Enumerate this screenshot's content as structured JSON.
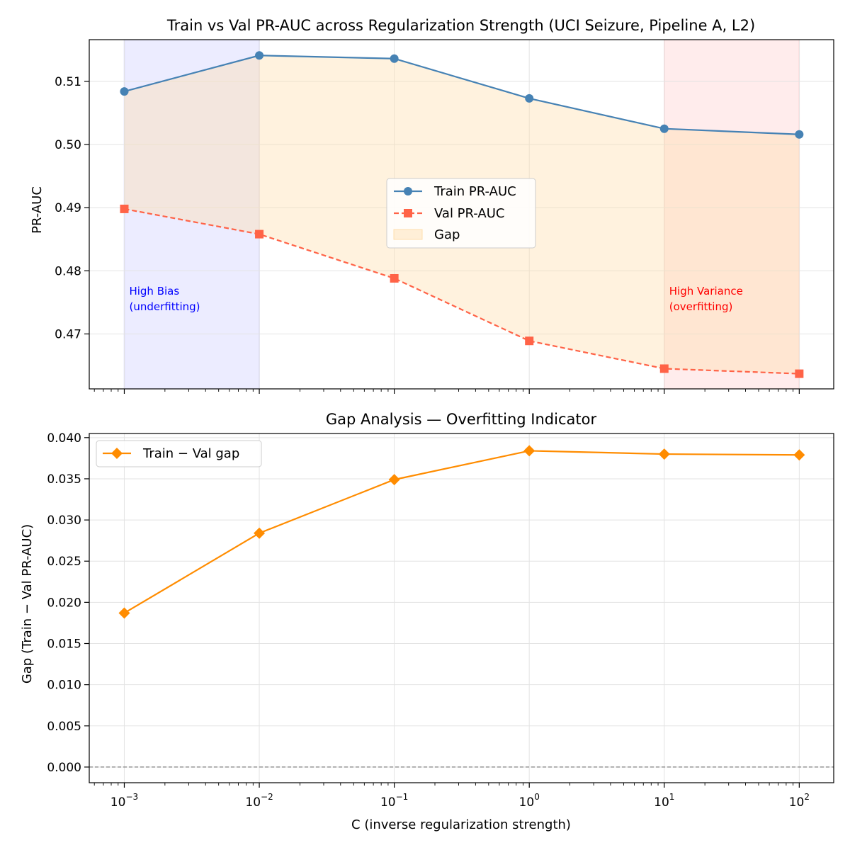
{
  "chart_data": [
    {
      "type": "line",
      "title": "Train vs Val PR-AUC across Regularization Strength (UCI Seizure, Pipeline A, L2)",
      "xlabel": "",
      "ylabel": "PR-AUC",
      "xscale": "log",
      "xlim": [
        0.00055,
        180
      ],
      "ylim": [
        0.4613,
        0.5166
      ],
      "x": [
        0.001,
        0.01,
        0.1,
        1,
        10,
        100
      ],
      "yticks": [
        0.47,
        0.48,
        0.49,
        0.5,
        0.51
      ],
      "ytick_labels": [
        "0.47",
        "0.48",
        "0.49",
        "0.50",
        "0.51"
      ],
      "grid": true,
      "legend_placement": "center",
      "series": [
        {
          "name": "Train PR-AUC",
          "values": [
            0.5084,
            0.5141,
            0.5136,
            0.5073,
            0.5025,
            0.5016
          ],
          "color": "#4682B4",
          "marker": "circle",
          "linestyle": "solid"
        },
        {
          "name": "Val PR-AUC",
          "values": [
            0.4898,
            0.4858,
            0.4788,
            0.4689,
            0.4645,
            0.4637
          ],
          "color": "#FF6347",
          "marker": "square",
          "linestyle": "dashed"
        }
      ],
      "fill_between": {
        "name": "Gap",
        "color": "#FFDEAD"
      },
      "regions": [
        {
          "x_range": [
            0.001,
            0.01
          ],
          "color": "#0000FF",
          "label": "High Bias\n(underfitting)",
          "label_color": "#0000FF"
        },
        {
          "x_range": [
            10,
            100
          ],
          "color": "#FF0000",
          "label": "High Variance\n(overfitting)",
          "label_color": "#FF0000"
        }
      ]
    },
    {
      "type": "line",
      "title": "Gap Analysis — Overfitting Indicator",
      "xlabel": "C (inverse regularization strength)",
      "ylabel": "Gap (Train − Val PR-AUC)",
      "xscale": "log",
      "xlim": [
        0.00055,
        180
      ],
      "ylim": [
        -0.0019,
        0.0405
      ],
      "x": [
        0.001,
        0.01,
        0.1,
        1,
        10,
        100
      ],
      "xtick_bases": [
        "10",
        "10",
        "10",
        "10",
        "10",
        "10"
      ],
      "xtick_exponents": [
        "−3",
        "−2",
        "−1",
        "0",
        "1",
        "2"
      ],
      "yticks": [
        0.0,
        0.005,
        0.01,
        0.015,
        0.02,
        0.025,
        0.03,
        0.035,
        0.04
      ],
      "ytick_labels": [
        "0.000",
        "0.005",
        "0.010",
        "0.015",
        "0.020",
        "0.025",
        "0.030",
        "0.035",
        "0.040"
      ],
      "grid": true,
      "legend_placement": "upper-left",
      "reference_line": {
        "y": 0.0,
        "color": "#808080",
        "linestyle": "dashed"
      },
      "series": [
        {
          "name": "Train − Val gap",
          "values": [
            0.0187,
            0.0284,
            0.0349,
            0.0384,
            0.038,
            0.0379
          ],
          "color": "#FF8C00",
          "marker": "diamond",
          "linestyle": "solid"
        }
      ]
    }
  ]
}
